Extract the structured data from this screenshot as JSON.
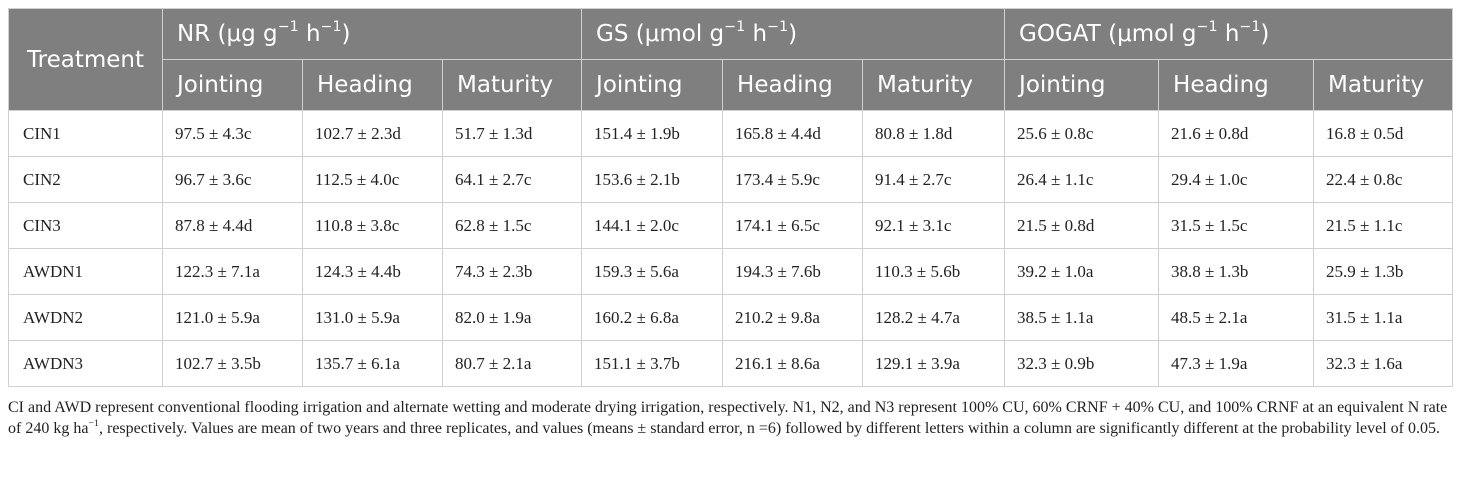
{
  "table": {
    "treatment_header": "Treatment",
    "groups": [
      {
        "base": "NR (μg g",
        "exp1": "−1",
        "mid": " h",
        "exp2": "−1",
        "end": ")"
      },
      {
        "base": "GS (μmol g",
        "exp1": "−1",
        "mid": " h",
        "exp2": "−1",
        "end": ")"
      },
      {
        "base": "GOGAT (μmol g",
        "exp1": "−1",
        "mid": " h",
        "exp2": "−1",
        "end": ")"
      }
    ],
    "stages": [
      "Jointing",
      "Heading",
      "Maturity",
      "Jointing",
      "Heading",
      "Maturity",
      "Jointing",
      "Heading",
      "Maturity"
    ],
    "rows": [
      {
        "treatment": "CIN1",
        "values": [
          "97.5 ± 4.3c",
          "102.7 ± 2.3d",
          "51.7 ± 1.3d",
          "151.4 ± 1.9b",
          "165.8 ± 4.4d",
          "80.8 ± 1.8d",
          "25.6 ± 0.8c",
          "21.6 ± 0.8d",
          "16.8 ± 0.5d"
        ]
      },
      {
        "treatment": "CIN2",
        "values": [
          "96.7 ± 3.6c",
          "112.5 ± 4.0c",
          "64.1 ± 2.7c",
          "153.6 ± 2.1b",
          "173.4 ± 5.9c",
          "91.4 ± 2.7c",
          "26.4 ± 1.1c",
          "29.4 ± 1.0c",
          "22.4 ± 0.8c"
        ]
      },
      {
        "treatment": "CIN3",
        "values": [
          "87.8 ± 4.4d",
          "110.8 ± 3.8c",
          "62.8 ± 1.5c",
          "144.1 ± 2.0c",
          "174.1 ± 6.5c",
          "92.1 ± 3.1c",
          "21.5 ± 0.8d",
          "31.5 ± 1.5c",
          "21.5 ± 1.1c"
        ]
      },
      {
        "treatment": "AWDN1",
        "values": [
          "122.3 ± 7.1a",
          "124.3 ± 4.4b",
          "74.3 ± 2.3b",
          "159.3 ± 5.6a",
          "194.3 ± 7.6b",
          "110.3 ± 5.6b",
          "39.2 ± 1.0a",
          "38.8 ± 1.3b",
          "25.9 ± 1.3b"
        ]
      },
      {
        "treatment": "AWDN2",
        "values": [
          "121.0 ± 5.9a",
          "131.0 ± 5.9a",
          "82.0 ± 1.9a",
          "160.2 ± 6.8a",
          "210.2 ± 9.8a",
          "128.2 ± 4.7a",
          "38.5 ± 1.1a",
          "48.5 ± 2.1a",
          "31.5 ± 1.1a"
        ]
      },
      {
        "treatment": "AWDN3",
        "values": [
          "102.7 ± 3.5b",
          "135.7 ± 6.1a",
          "80.7 ± 2.1a",
          "151.1 ± 3.7b",
          "216.1 ± 8.6a",
          "129.1 ± 3.9a",
          "32.3 ± 0.9b",
          "47.3 ± 1.9a",
          "32.3 ± 1.6a"
        ]
      }
    ]
  },
  "footnote": {
    "part1": "CI and AWD represent conventional flooding irrigation and alternate wetting and moderate drying irrigation, respectively. N1, N2, and N3 represent 100% CU, 60% CRNF + 40% CU, and 100% CRNF at an equivalent N rate of 240 kg ha",
    "exp": "−1",
    "part2": ", respectively. Values are mean of two years and three replicates, and values (means ± standard error, n =6) followed by different letters within a column are significantly different at the probability level of 0.05."
  },
  "colors": {
    "header_bg": "#7f7f7f",
    "header_text": "#ffffff",
    "grid": "#d0d0d0",
    "body_text": "#222222"
  }
}
